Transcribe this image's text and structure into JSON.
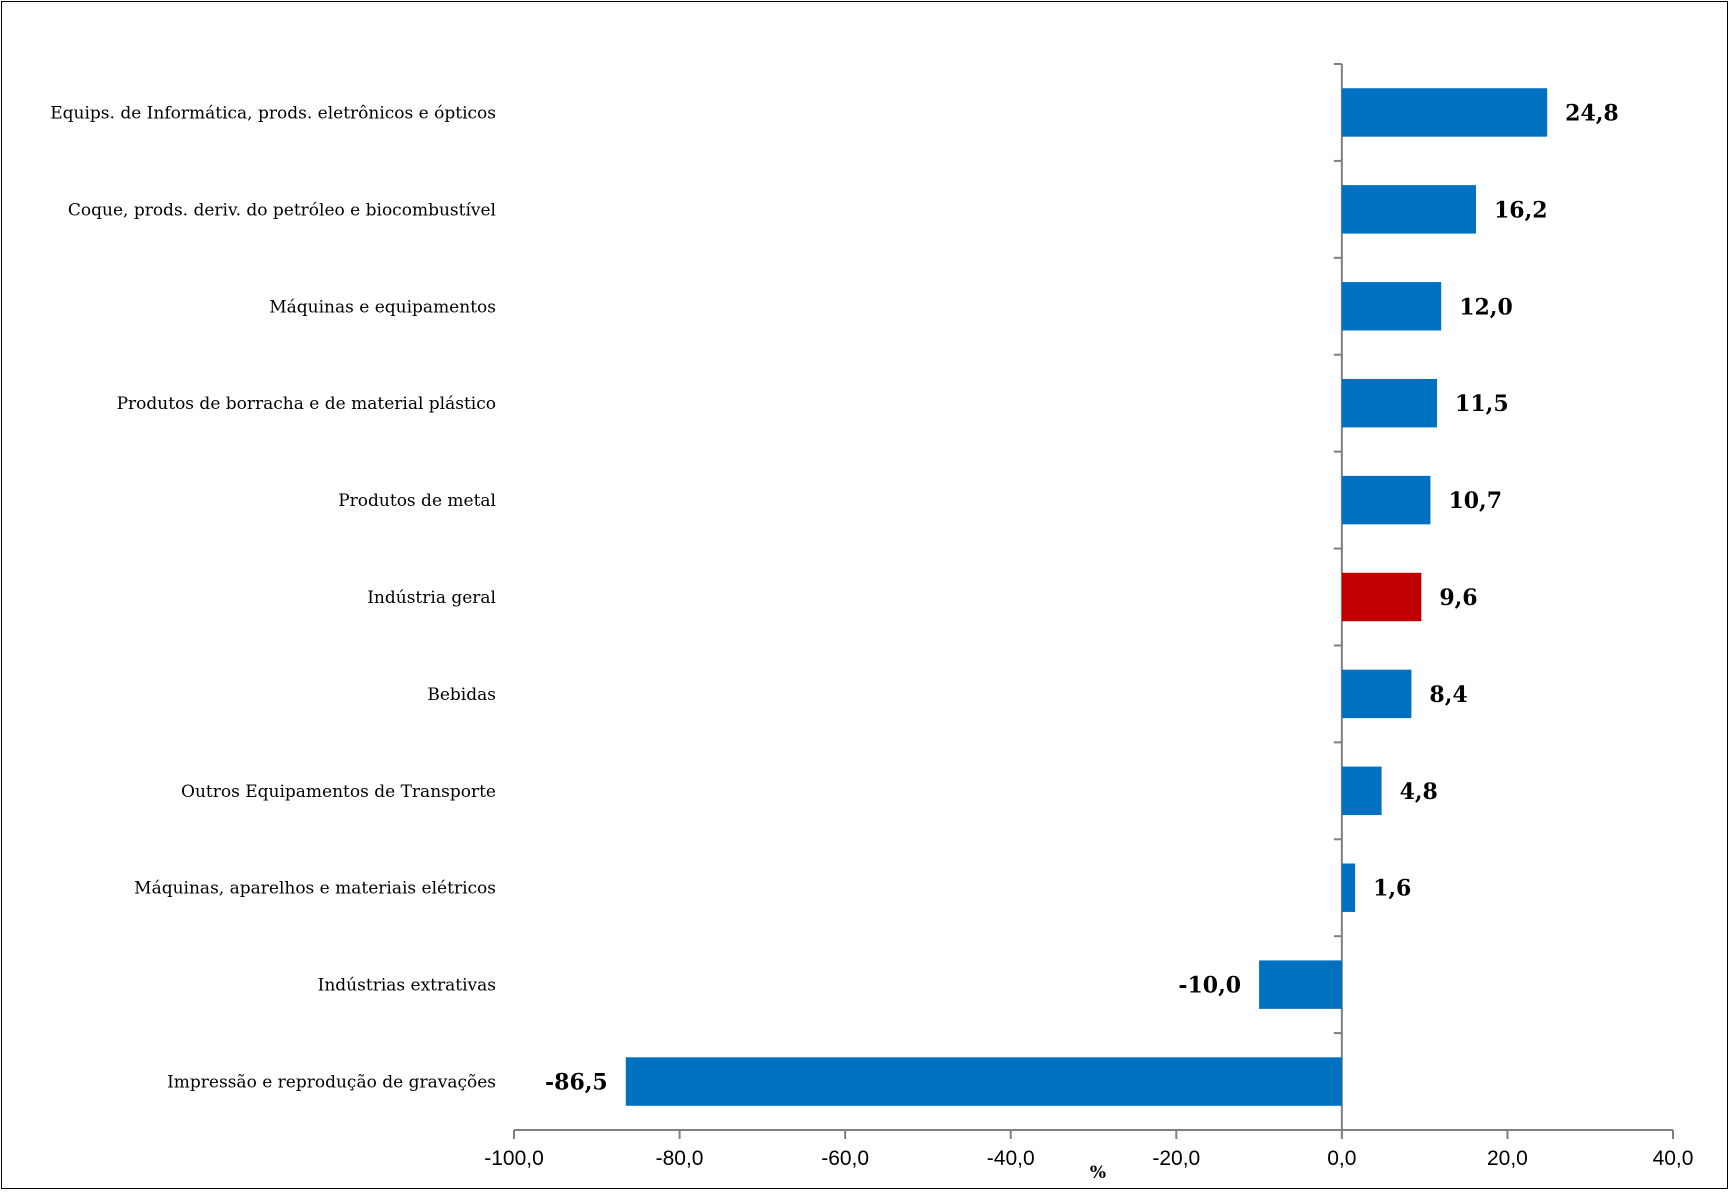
{
  "chart_data": {
    "type": "bar",
    "orientation": "horizontal",
    "categories": [
      "Equips. de Informática, prods. eletrônicos e ópticos",
      "Coque, prods. deriv. do petróleo e biocombustível",
      "Máquinas e equipamentos",
      "Produtos de borracha e de material plástico",
      "Produtos de metal",
      "Indústria geral",
      "Bebidas",
      "Outros Equipamentos de Transporte",
      "Máquinas, aparelhos e materiais elétricos",
      "Indústrias extrativas",
      "Impressão e reprodução de gravações"
    ],
    "values": [
      24.8,
      16.2,
      12.0,
      11.5,
      10.7,
      9.6,
      8.4,
      4.8,
      1.6,
      -10.0,
      -86.5
    ],
    "value_labels": [
      "24,8",
      "16,2",
      "12,0",
      "11,5",
      "10,7",
      "9,6",
      "8,4",
      "4,8",
      "1,6",
      "-10,0",
      "-86,5"
    ],
    "highlight_index": 5,
    "colors": {
      "default": "#0070C0",
      "highlight": "#C00000",
      "axis": "#808080"
    },
    "xlim": [
      -100,
      40
    ],
    "xticks": [
      -100,
      -80,
      -60,
      -40,
      -20,
      0,
      20,
      40
    ],
    "xtick_labels": [
      "-100,0",
      "-80,0",
      "-60,0",
      "-40,0",
      "-20,0",
      "0,0",
      "20,0",
      "40,0"
    ],
    "xlabel": "%",
    "ylabel": "",
    "title": "",
    "grid": false,
    "legend": "none"
  }
}
